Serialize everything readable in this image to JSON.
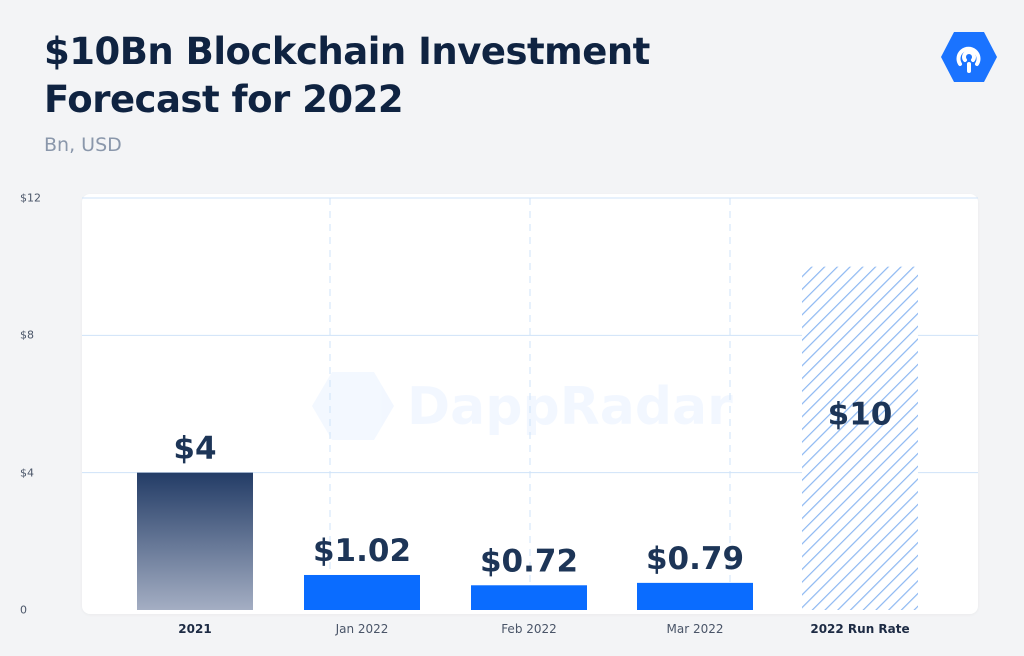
{
  "header": {
    "title_line1": "$10Bn Blockchain Investment",
    "title_line2": "Forecast for 2022",
    "subtitle": "Bn, USD"
  },
  "watermark": {
    "text": "DappRadar",
    "icon": "dappradar-logo-icon"
  },
  "logo": {
    "icon": "dappradar-logo-icon",
    "color": "#1a73ff"
  },
  "colors": {
    "primary_bar": "#0a6cff",
    "dark_gradient_top": "#233c66",
    "dark_gradient_bottom": "#a4aec3",
    "hatch": "#8db8f2",
    "gridline": "#cfe3f8",
    "value_label": "#1d3557"
  },
  "chart_data": {
    "type": "bar",
    "categories": [
      "2021",
      "Jan 2022",
      "Feb 2022",
      "Mar 2022",
      "2022 Run Rate"
    ],
    "values": [
      4,
      1.02,
      0.72,
      0.79,
      10
    ],
    "value_labels": [
      "$4",
      "$1.02",
      "$0.72",
      "$0.79",
      "$10"
    ],
    "bar_styles": [
      "gradient-dark",
      "solid-blue",
      "solid-blue",
      "solid-blue",
      "hatched"
    ],
    "bold_categories": [
      true,
      false,
      false,
      false,
      true
    ],
    "title": "$10Bn Blockchain Investment Forecast for 2022",
    "subtitle": "Bn, USD",
    "ylim": [
      0,
      12
    ],
    "yticks": [
      0,
      4,
      8,
      12
    ],
    "ytick_labels": [
      "0",
      "$4",
      "$8",
      "$12"
    ],
    "grid": true
  }
}
